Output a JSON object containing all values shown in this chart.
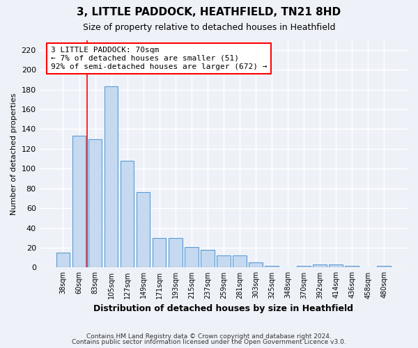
{
  "title1": "3, LITTLE PADDOCK, HEATHFIELD, TN21 8HD",
  "title2": "Size of property relative to detached houses in Heathfield",
  "xlabel": "Distribution of detached houses by size in Heathfield",
  "ylabel": "Number of detached properties",
  "categories": [
    "38sqm",
    "60sqm",
    "83sqm",
    "105sqm",
    "127sqm",
    "149sqm",
    "171sqm",
    "193sqm",
    "215sqm",
    "237sqm",
    "259sqm",
    "281sqm",
    "303sqm",
    "325sqm",
    "348sqm",
    "370sqm",
    "392sqm",
    "414sqm",
    "436sqm",
    "458sqm",
    "480sqm"
  ],
  "values": [
    15,
    133,
    130,
    183,
    108,
    76,
    30,
    30,
    21,
    18,
    12,
    12,
    5,
    2,
    0,
    2,
    3,
    3,
    2,
    0,
    2
  ],
  "bar_color": "#c5d9f0",
  "bar_edge_color": "#5b9bd5",
  "red_line_x": 1.5,
  "annotation_box_text": "3 LITTLE PADDOCK: 70sqm\n← 7% of detached houses are smaller (51)\n92% of semi-detached houses are larger (672) →",
  "ylim": [
    0,
    230
  ],
  "yticks": [
    0,
    20,
    40,
    60,
    80,
    100,
    120,
    140,
    160,
    180,
    200,
    220
  ],
  "footer1": "Contains HM Land Registry data © Crown copyright and database right 2024.",
  "footer2": "Contains public sector information licensed under the Open Government Licence v3.0.",
  "bg_color": "#eef2f8",
  "plot_bg_color": "#eef2f8"
}
